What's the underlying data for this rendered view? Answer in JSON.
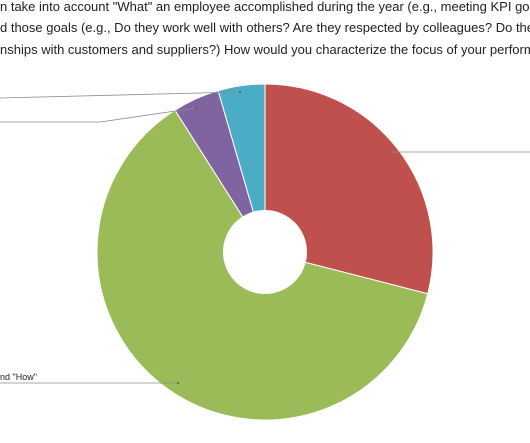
{
  "question": {
    "line1": "n take into account \"What\" an employee accomplished during the year (e.g., meeting KPI goals",
    "line2": "d those goals (e.g., Do they work well with others? Are they respected by colleagues? Do they",
    "line3": "nships with customers and suppliers?) How would you characterize the focus of your perform"
  },
  "chart_data": {
    "type": "pie",
    "donut": true,
    "title": "",
    "slices": [
      {
        "label": "",
        "value": 29,
        "color": "#c0504d"
      },
      {
        "label": "nd \"How\"",
        "value": 62,
        "color": "#9bbb59"
      },
      {
        "label": "",
        "value": 4.5,
        "color": "#8064a2"
      },
      {
        "label": "",
        "value": 4.5,
        "color": "#4bacc6"
      }
    ],
    "start": "12 o'clock",
    "direction": "clockwise",
    "legend": "none"
  }
}
